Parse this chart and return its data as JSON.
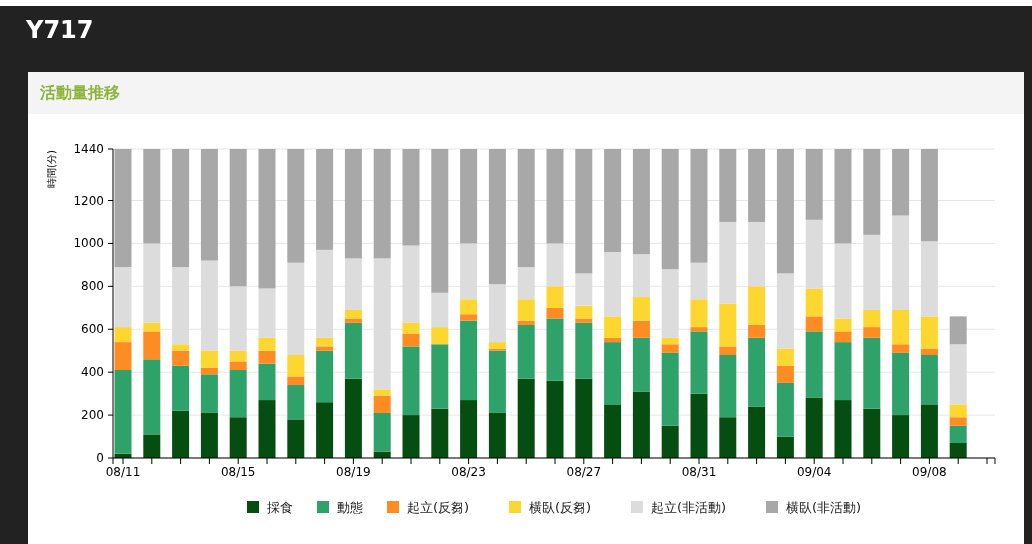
{
  "chart_data": {
    "type": "bar",
    "title": "Y717",
    "subtitle": "活動量推移",
    "ylabel": "時間(分)",
    "categories": [
      "08/11",
      null,
      null,
      null,
      "08/15",
      null,
      null,
      null,
      "08/19",
      null,
      null,
      null,
      "08/23",
      null,
      null,
      null,
      "08/27",
      null,
      null,
      null,
      "08/31",
      null,
      null,
      null,
      "09/04",
      null,
      null,
      null,
      "09/08",
      null,
      null
    ],
    "stacked": true,
    "grid": "y",
    "legend": "bottom",
    "ylim": [
      0,
      1440
    ],
    "yticks": [
      0,
      200,
      400,
      600,
      800,
      1000,
      1200,
      1440
    ],
    "series": [
      {
        "name": "採食",
        "color": "#064d12",
        "values": [
          20,
          110,
          220,
          210,
          190,
          270,
          180,
          260,
          370,
          30,
          200,
          230,
          270,
          210,
          370,
          360,
          370,
          250,
          310,
          150,
          300,
          190,
          240,
          100,
          280,
          270,
          230,
          200,
          250,
          70,
          null
        ]
      },
      {
        "name": "動態",
        "color": "#2ea268",
        "values": [
          390,
          350,
          210,
          180,
          220,
          170,
          160,
          240,
          260,
          180,
          320,
          300,
          370,
          290,
          250,
          290,
          260,
          290,
          250,
          340,
          290,
          290,
          320,
          250,
          310,
          270,
          330,
          290,
          230,
          80,
          null
        ]
      },
      {
        "name": "起立(反芻)",
        "color": "#fd8c22",
        "values": [
          130,
          130,
          70,
          30,
          40,
          60,
          40,
          20,
          20,
          80,
          60,
          0,
          30,
          10,
          20,
          50,
          20,
          20,
          80,
          40,
          20,
          40,
          60,
          80,
          70,
          50,
          50,
          40,
          30,
          40,
          null
        ]
      },
      {
        "name": "横臥(反芻)",
        "color": "#fed630",
        "values": [
          70,
          40,
          30,
          80,
          50,
          60,
          100,
          40,
          40,
          30,
          50,
          80,
          70,
          30,
          100,
          100,
          60,
          100,
          110,
          30,
          130,
          200,
          180,
          80,
          130,
          60,
          80,
          160,
          150,
          60,
          null
        ]
      },
      {
        "name": "起立(非活動)",
        "color": "#dcdcdc",
        "values": [
          280,
          370,
          360,
          420,
          300,
          230,
          430,
          410,
          240,
          610,
          360,
          160,
          260,
          270,
          150,
          200,
          150,
          300,
          200,
          320,
          170,
          380,
          300,
          350,
          320,
          350,
          350,
          440,
          350,
          280,
          null
        ]
      },
      {
        "name": "横臥(非活動)",
        "color": "#a8a8a8",
        "values": [
          550,
          440,
          550,
          520,
          640,
          650,
          530,
          470,
          510,
          510,
          450,
          670,
          440,
          630,
          550,
          440,
          580,
          480,
          490,
          560,
          530,
          340,
          340,
          580,
          330,
          440,
          400,
          310,
          430,
          130,
          null
        ]
      }
    ]
  }
}
